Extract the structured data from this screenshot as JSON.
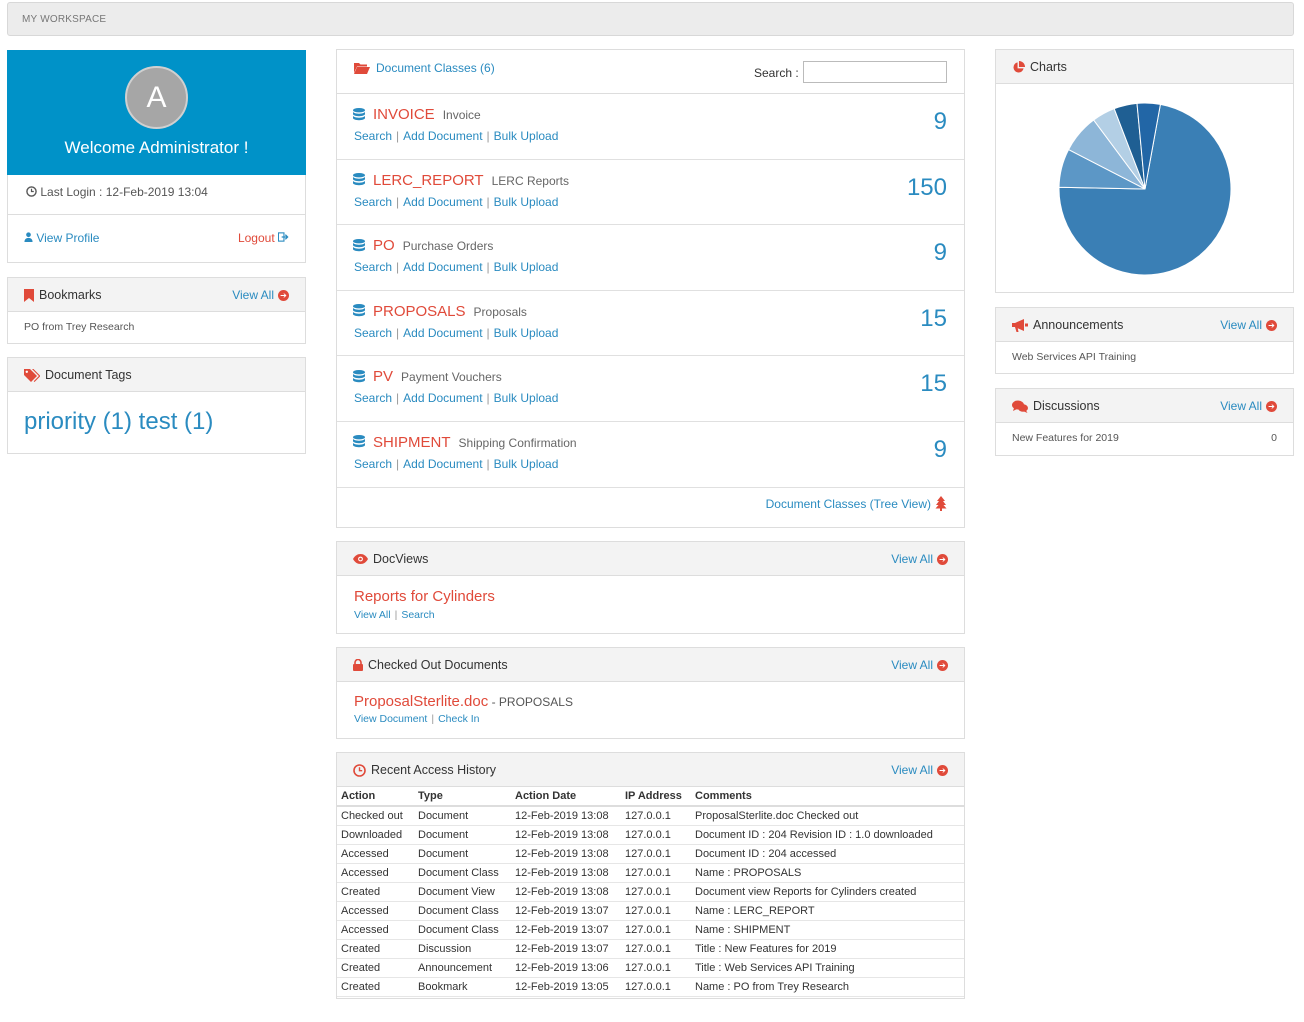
{
  "topbar": {
    "title": "MY WORKSPACE"
  },
  "user": {
    "avatar_letter": "A",
    "welcome": "Welcome Administrator !",
    "last_login": "Last Login : 12-Feb-2019 13:04",
    "view_profile": "View Profile",
    "logout": "Logout"
  },
  "bookmarks": {
    "title": "Bookmarks",
    "view_all": "View All",
    "items": [
      "PO from Trey Research"
    ]
  },
  "tags": {
    "title": "Document Tags",
    "text": "priority (1) test (1)"
  },
  "doc_classes": {
    "title": "Document Classes (6)",
    "search_label": "Search :",
    "search_value": "",
    "action_search": "Search",
    "action_add": "Add Document",
    "action_bulk": "Bulk Upload",
    "tree_view": "Document Classes (Tree View)",
    "items": [
      {
        "code": "INVOICE",
        "desc": "Invoice",
        "count": "9"
      },
      {
        "code": "LERC_REPORT",
        "desc": "LERC Reports",
        "count": "150"
      },
      {
        "code": "PO",
        "desc": "Purchase Orders",
        "count": "9"
      },
      {
        "code": "PROPOSALS",
        "desc": "Proposals",
        "count": "15"
      },
      {
        "code": "PV",
        "desc": "Payment Vouchers",
        "count": "15"
      },
      {
        "code": "SHIPMENT",
        "desc": "Shipping Confirmation",
        "count": "9"
      }
    ]
  },
  "docviews": {
    "title": "DocViews",
    "view_all": "View All",
    "item": "Reports for Cylinders",
    "link_view_all": "View All",
    "link_search": "Search"
  },
  "checked_out": {
    "title": "Checked Out Documents",
    "view_all": "View All",
    "file": "ProposalSterlite.doc",
    "class_suffix": "- PROPOSALS",
    "link_view": "View Document",
    "link_checkin": "Check In"
  },
  "history": {
    "title": "Recent Access History",
    "view_all": "View All",
    "columns": [
      "Action",
      "Type",
      "Action Date",
      "IP Address",
      "Comments"
    ],
    "rows": [
      [
        "Checked out",
        "Document",
        "12-Feb-2019 13:08",
        "127.0.0.1",
        "ProposalSterlite.doc Checked out"
      ],
      [
        "Downloaded",
        "Document",
        "12-Feb-2019 13:08",
        "127.0.0.1",
        "Document ID : 204 Revision ID : 1.0 downloaded"
      ],
      [
        "Accessed",
        "Document",
        "12-Feb-2019 13:08",
        "127.0.0.1",
        "Document ID : 204 accessed"
      ],
      [
        "Accessed",
        "Document Class",
        "12-Feb-2019 13:08",
        "127.0.0.1",
        "Name : PROPOSALS"
      ],
      [
        "Created",
        "Document View",
        "12-Feb-2019 13:08",
        "127.0.0.1",
        "Document view Reports for Cylinders created"
      ],
      [
        "Accessed",
        "Document Class",
        "12-Feb-2019 13:07",
        "127.0.0.1",
        "Name : LERC_REPORT"
      ],
      [
        "Accessed",
        "Document Class",
        "12-Feb-2019 13:07",
        "127.0.0.1",
        "Name : SHIPMENT"
      ],
      [
        "Created",
        "Discussion",
        "12-Feb-2019 13:07",
        "127.0.0.1",
        "Title : New Features for 2019"
      ],
      [
        "Created",
        "Announcement",
        "12-Feb-2019 13:06",
        "127.0.0.1",
        "Title : Web Services API Training"
      ],
      [
        "Created",
        "Bookmark",
        "12-Feb-2019 13:05",
        "127.0.0.1",
        "Name : PO from Trey Research"
      ]
    ]
  },
  "charts": {
    "title": "Charts"
  },
  "chart_data": {
    "type": "pie",
    "values": [
      150,
      15,
      15,
      9,
      9,
      9
    ],
    "colors": [
      "#3a7fb5",
      "#5c97c6",
      "#8db6d8",
      "#b3cfe5",
      "#1f5f93",
      "#2266a6"
    ]
  },
  "announcements": {
    "title": "Announcements",
    "view_all": "View All",
    "items": [
      "Web Services API Training"
    ]
  },
  "discussions": {
    "title": "Discussions",
    "view_all": "View All",
    "items": [
      {
        "title": "New Features for 2019",
        "count": "0"
      }
    ]
  }
}
